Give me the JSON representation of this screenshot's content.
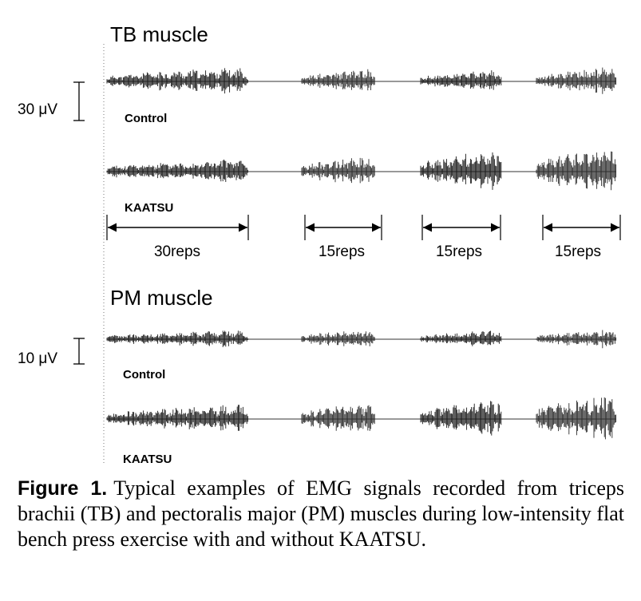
{
  "figure": {
    "panels": [
      {
        "title": "TB muscle",
        "scale_bar_label": "30 μV",
        "traces": [
          {
            "label": "Control",
            "burst_amplitudes": [
              0.62,
              0.55,
              0.5,
              0.65
            ]
          },
          {
            "label": "KAATSU",
            "burst_amplitudes": [
              0.55,
              0.65,
              0.95,
              1.0
            ]
          }
        ]
      },
      {
        "title": "PM muscle",
        "scale_bar_label": "10 μV",
        "traces": [
          {
            "label": "Control",
            "burst_amplitudes": [
              0.55,
              0.6,
              0.55,
              0.6
            ]
          },
          {
            "label": "KAATSU",
            "burst_amplitudes": [
              0.55,
              0.6,
              0.75,
              0.95
            ]
          }
        ]
      }
    ],
    "rep_periods": [
      {
        "label": "30reps"
      },
      {
        "label": "15reps"
      },
      {
        "label": "15reps"
      },
      {
        "label": "15reps"
      }
    ]
  },
  "caption": {
    "label": "Figure 1.",
    "text": "Typical examples of EMG signals recorded from triceps brachii (TB) and pectoralis major (PM) muscles during low-intensity flat bench press exercise with and without KAATSU."
  }
}
